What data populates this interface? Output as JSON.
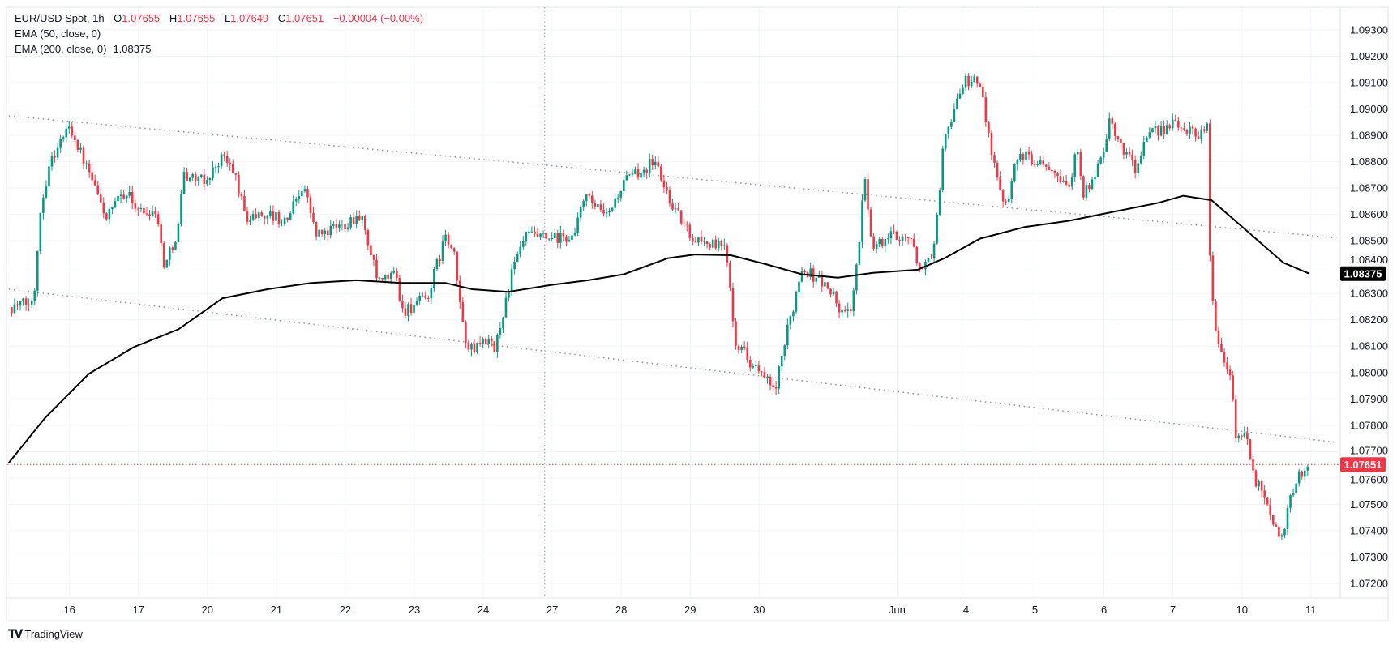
{
  "legend": {
    "symbol": "EUR/USD Spot, 1h",
    "o_label": "O",
    "o": "1.07655",
    "h_label": "H",
    "h": "1.07655",
    "l_label": "L",
    "l": "1.07649",
    "c_label": "C",
    "c": "1.07651",
    "change": "−0.00004 (−0.00%)",
    "ema50": "EMA (50, close, 0)",
    "ema200": "EMA (200, close, 0)",
    "ema200_value": "1.08375"
  },
  "branding": {
    "logo_text": "TradingView"
  },
  "colors": {
    "up": "#089981",
    "down": "#F23645",
    "ema": "#000000",
    "trend": "#9598a1",
    "grid": "#f0f3fa"
  },
  "chart_data": {
    "type": "candlestick",
    "title": "EUR/USD Spot, 1h",
    "ylim": [
      1.0715,
      1.0935
    ],
    "y_ticks": [
      "1.09300",
      "1.09200",
      "1.09100",
      "1.09000",
      "1.08900",
      "1.08800",
      "1.08700",
      "1.08600",
      "1.08500",
      "1.08400",
      "1.08300",
      "1.08200",
      "1.08100",
      "1.08000",
      "1.07900",
      "1.07800",
      "1.07700",
      "1.07600",
      "1.07500",
      "1.07400",
      "1.07300",
      "1.07200"
    ],
    "x_ticks": [
      {
        "t": 0,
        "label": "16"
      },
      {
        "t": 1,
        "label": "17"
      },
      {
        "t": 2,
        "label": "20"
      },
      {
        "t": 3,
        "label": "21"
      },
      {
        "t": 4,
        "label": "22"
      },
      {
        "t": 5,
        "label": "23"
      },
      {
        "t": 6,
        "label": "24"
      },
      {
        "t": 7,
        "label": "27"
      },
      {
        "t": 8,
        "label": "28"
      },
      {
        "t": 9,
        "label": "29"
      },
      {
        "t": 10,
        "label": "30"
      },
      {
        "t": 12,
        "label": "Jun"
      },
      {
        "t": 13,
        "label": "4"
      },
      {
        "t": 14,
        "label": "5"
      },
      {
        "t": 15,
        "label": "6"
      },
      {
        "t": 16,
        "label": "7"
      },
      {
        "t": 17,
        "label": "10"
      },
      {
        "t": 18,
        "label": "11"
      }
    ],
    "x_unit": "trading-day index (0 = May 16)",
    "close_path": [
      [
        -0.88,
        1.08248
      ],
      [
        -0.52,
        1.08265
      ],
      [
        -0.43,
        1.08603
      ],
      [
        -0.3,
        1.08789
      ],
      [
        0,
        1.08941
      ],
      [
        0.28,
        1.08755
      ],
      [
        0.54,
        1.08586
      ],
      [
        0.8,
        1.08687
      ],
      [
        1.06,
        1.08603
      ],
      [
        1.25,
        1.0862
      ],
      [
        1.38,
        1.084
      ],
      [
        1.58,
        1.08552
      ],
      [
        1.64,
        1.08755
      ],
      [
        1.96,
        1.08721
      ],
      [
        2.22,
        1.08823
      ],
      [
        2.42,
        1.08738
      ],
      [
        2.55,
        1.08586
      ],
      [
        2.87,
        1.08603
      ],
      [
        3.13,
        1.08569
      ],
      [
        3.39,
        1.08721
      ],
      [
        3.58,
        1.08519
      ],
      [
        3.9,
        1.08552
      ],
      [
        4.22,
        1.08603
      ],
      [
        4.48,
        1.08333
      ],
      [
        4.74,
        1.08383
      ],
      [
        4.81,
        1.08231
      ],
      [
        5.19,
        1.08282
      ],
      [
        5.45,
        1.08519
      ],
      [
        5.58,
        1.08434
      ],
      [
        5.71,
        1.08164
      ],
      [
        5.81,
        1.08079
      ],
      [
        6.03,
        1.0813
      ],
      [
        6.16,
        1.08079
      ],
      [
        6.42,
        1.08383
      ],
      [
        6.61,
        1.08519
      ],
      [
        7.0,
        1.08502
      ],
      [
        7.33,
        1.08519
      ],
      [
        7.45,
        1.08671
      ],
      [
        7.78,
        1.08586
      ],
      [
        8.04,
        1.08721
      ],
      [
        8.49,
        1.08806
      ],
      [
        8.62,
        1.08704
      ],
      [
        8.81,
        1.08603
      ],
      [
        9.01,
        1.08519
      ],
      [
        9.33,
        1.08485
      ],
      [
        9.52,
        1.08468
      ],
      [
        9.59,
        1.08299
      ],
      [
        9.65,
        1.0813
      ],
      [
        9.91,
        1.08028
      ],
      [
        10.23,
        1.07927
      ],
      [
        10.43,
        1.08181
      ],
      [
        10.62,
        1.084
      ],
      [
        10.88,
        1.0835
      ],
      [
        11.07,
        1.08299
      ],
      [
        11.2,
        1.08214
      ],
      [
        11.33,
        1.08248
      ],
      [
        11.46,
        1.08485
      ],
      [
        11.52,
        1.08772
      ],
      [
        11.65,
        1.08468
      ],
      [
        11.91,
        1.08519
      ],
      [
        12.17,
        1.08519
      ],
      [
        12.3,
        1.08417
      ],
      [
        12.43,
        1.084
      ],
      [
        12.56,
        1.08519
      ],
      [
        12.66,
        1.0884
      ],
      [
        12.82,
        1.09009
      ],
      [
        13.01,
        1.0911
      ],
      [
        13.2,
        1.09093
      ],
      [
        13.33,
        1.08907
      ],
      [
        13.46,
        1.08721
      ],
      [
        13.59,
        1.08637
      ],
      [
        13.72,
        1.08823
      ],
      [
        14.04,
        1.08806
      ],
      [
        14.24,
        1.08789
      ],
      [
        14.5,
        1.08704
      ],
      [
        14.63,
        1.08873
      ],
      [
        14.69,
        1.08671
      ],
      [
        14.88,
        1.08738
      ],
      [
        15.08,
        1.08941
      ],
      [
        15.27,
        1.08856
      ],
      [
        15.47,
        1.08772
      ],
      [
        15.59,
        1.08873
      ],
      [
        15.79,
        1.08924
      ],
      [
        16.05,
        1.08941
      ],
      [
        16.37,
        1.08907
      ],
      [
        16.5,
        1.08941
      ],
      [
        16.54,
        1.084
      ],
      [
        16.63,
        1.0813
      ],
      [
        16.76,
        1.08028
      ],
      [
        16.85,
        1.07995
      ],
      [
        16.9,
        1.07742
      ],
      [
        17.02,
        1.07775
      ],
      [
        17.08,
        1.07725
      ],
      [
        17.21,
        1.07573
      ],
      [
        17.34,
        1.07539
      ],
      [
        17.47,
        1.07421
      ],
      [
        17.6,
        1.07353
      ],
      [
        17.66,
        1.07505
      ],
      [
        17.83,
        1.07606
      ],
      [
        17.98,
        1.07651
      ]
    ],
    "ema200_path": [
      [
        -0.88,
        1.07657
      ],
      [
        -0.36,
        1.07826
      ],
      [
        0.28,
        1.07995
      ],
      [
        0.93,
        1.08096
      ],
      [
        1.58,
        1.08164
      ],
      [
        2.22,
        1.08282
      ],
      [
        2.87,
        1.08316
      ],
      [
        3.51,
        1.0834
      ],
      [
        4.16,
        1.0835
      ],
      [
        4.81,
        1.0834
      ],
      [
        5.45,
        1.0834
      ],
      [
        5.84,
        1.08316
      ],
      [
        6.36,
        1.08306
      ],
      [
        7.0,
        1.08333
      ],
      [
        7.52,
        1.0835
      ],
      [
        8.04,
        1.08373
      ],
      [
        8.68,
        1.08434
      ],
      [
        9.07,
        1.08448
      ],
      [
        9.59,
        1.08445
      ],
      [
        10.1,
        1.08411
      ],
      [
        10.62,
        1.08373
      ],
      [
        11.14,
        1.0836
      ],
      [
        11.65,
        1.08378
      ],
      [
        12.3,
        1.0839
      ],
      [
        12.69,
        1.08434
      ],
      [
        13.2,
        1.08508
      ],
      [
        13.85,
        1.08552
      ],
      [
        14.5,
        1.08576
      ],
      [
        15.14,
        1.0861
      ],
      [
        15.79,
        1.08644
      ],
      [
        16.15,
        1.08671
      ],
      [
        16.56,
        1.08654
      ],
      [
        17.08,
        1.08536
      ],
      [
        17.6,
        1.08417
      ],
      [
        17.98,
        1.08375
      ]
    ],
    "trendlines": [
      {
        "name": "upper channel",
        "from": [
          -0.88,
          1.08974
        ],
        "to": [
          18.37,
          1.08511
        ]
      },
      {
        "name": "lower channel",
        "from": [
          -0.88,
          1.08316
        ],
        "to": [
          18.37,
          1.07735
        ]
      }
    ],
    "crosshair_t": 6.89,
    "last_price": "1.07651",
    "ema200_label": "1.08375",
    "ema200_value": 1.08375,
    "last_price_value": 1.07651
  }
}
